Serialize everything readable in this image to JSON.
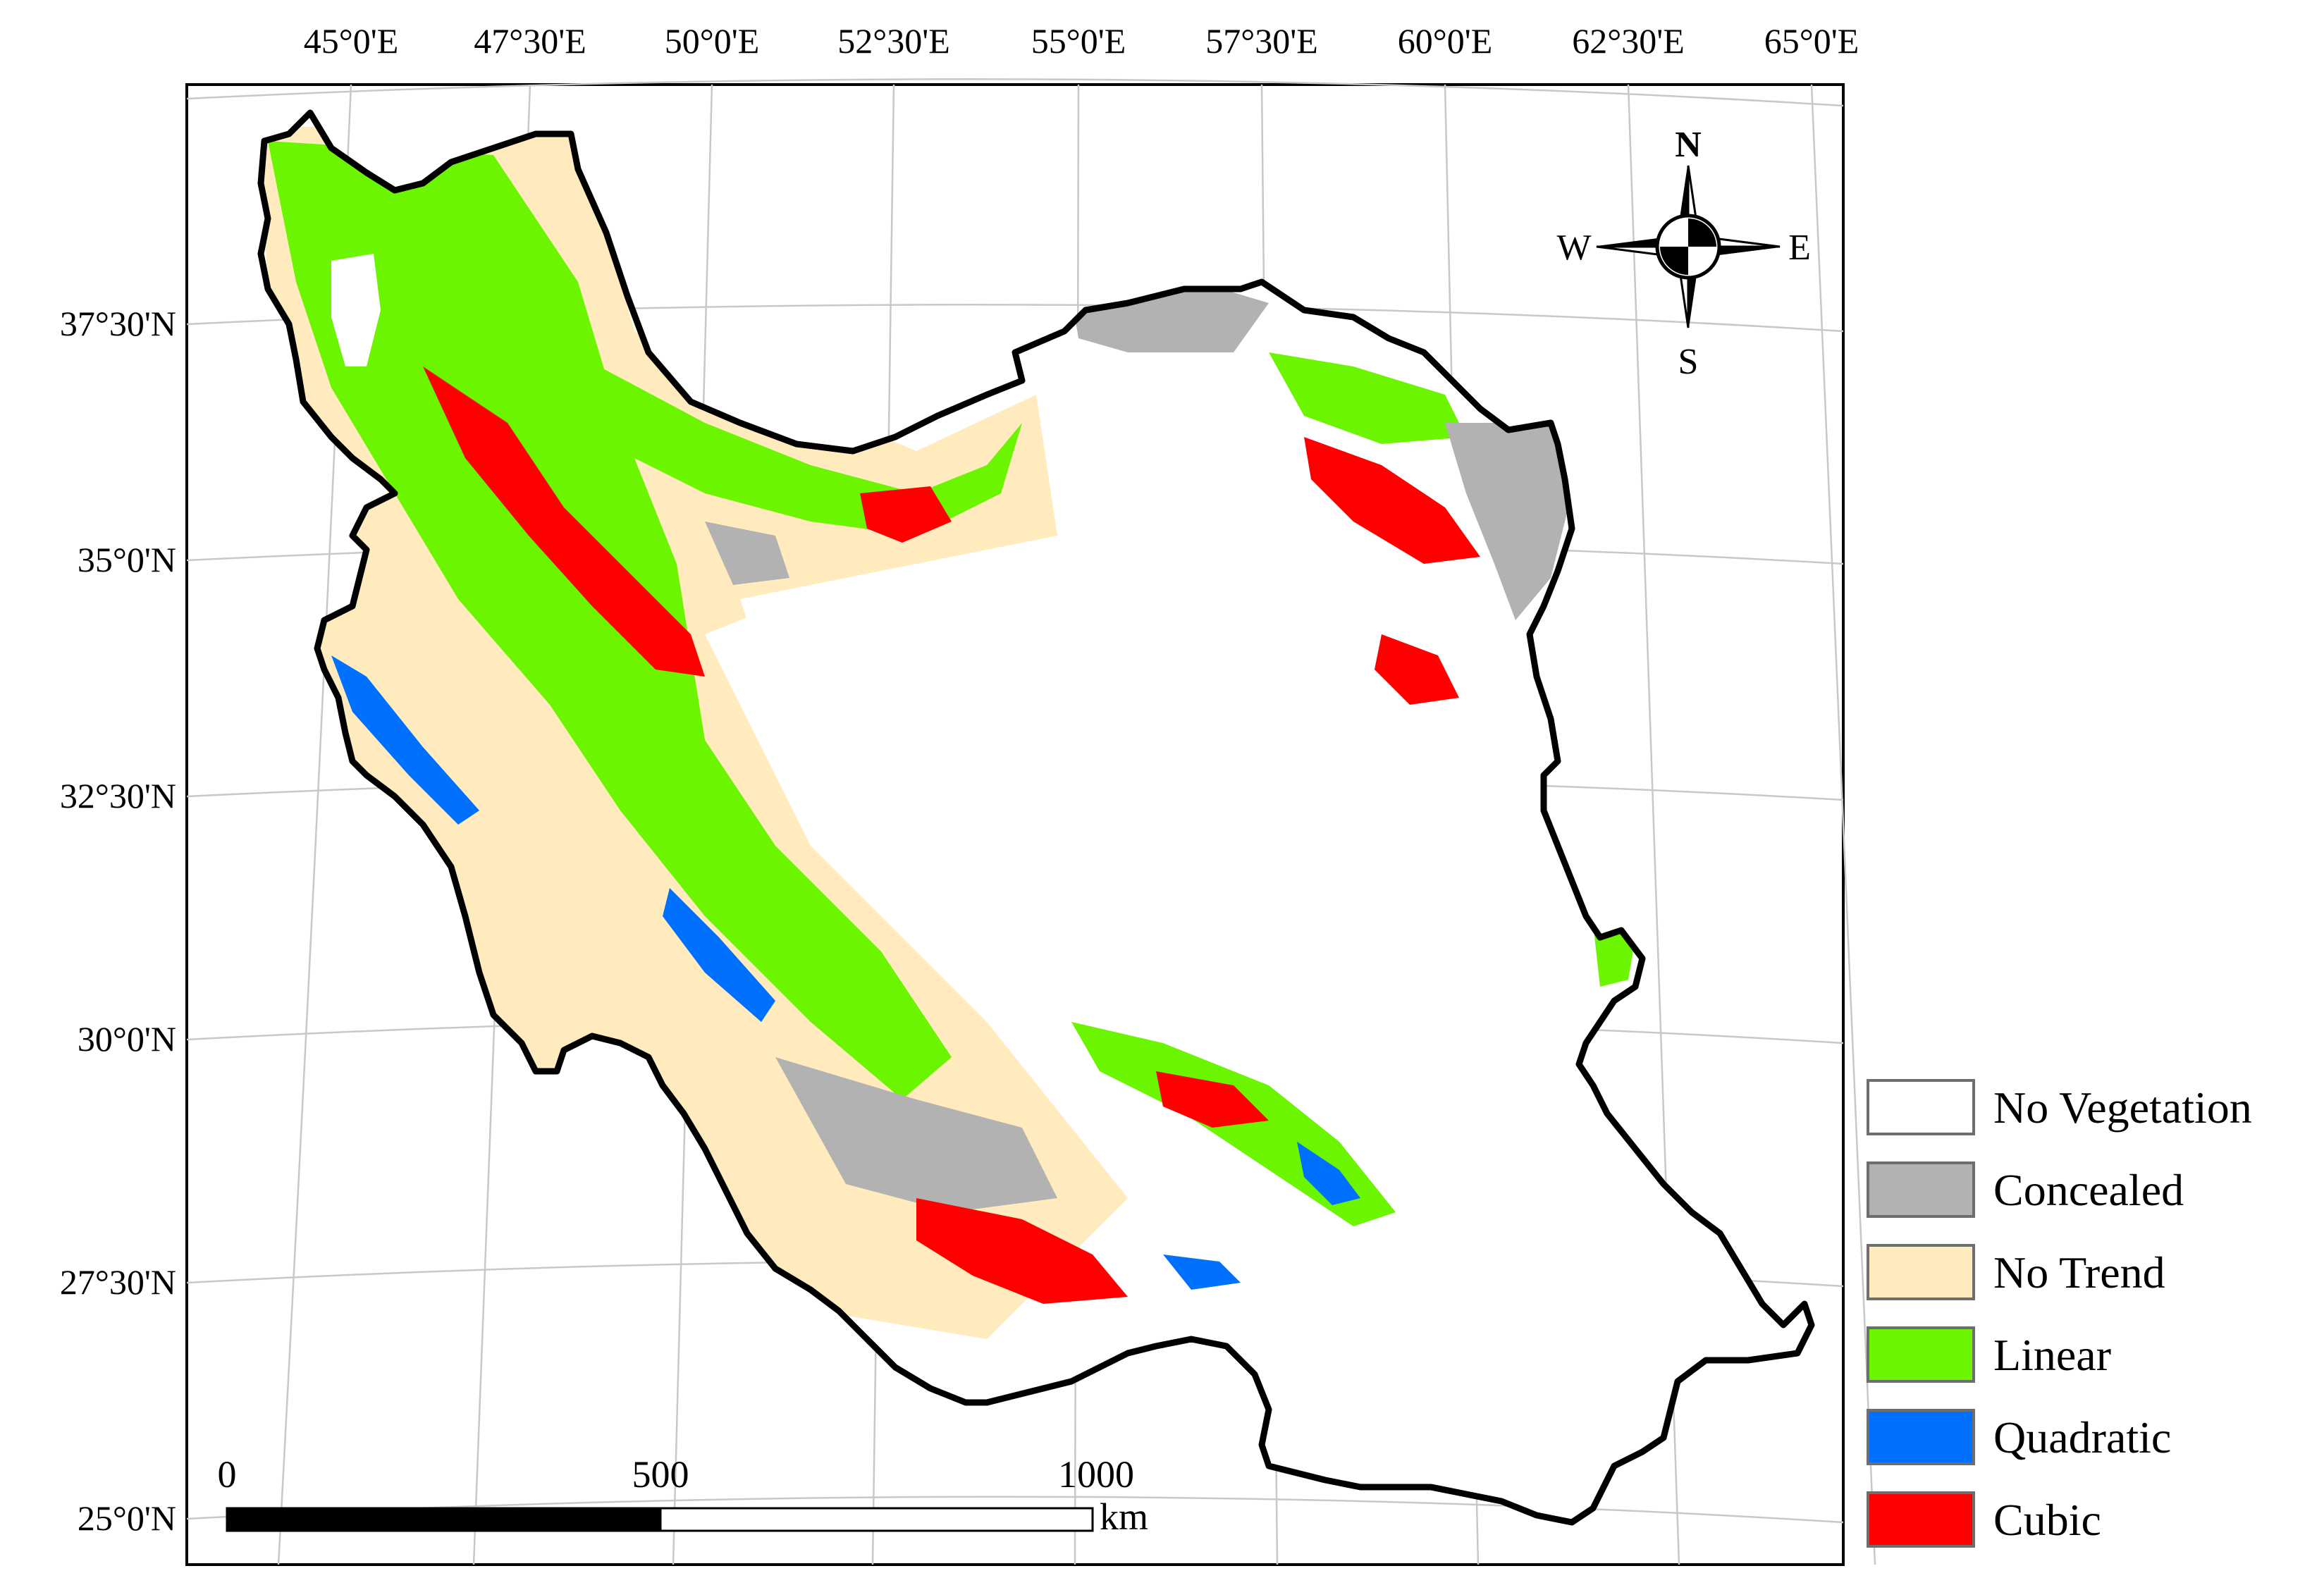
{
  "map": {
    "longitude_labels": [
      "45°0'E",
      "47°30'E",
      "50°0'E",
      "52°30'E",
      "55°0'E",
      "57°30'E",
      "60°0'E",
      "62°30'E",
      "65°0'E"
    ],
    "latitude_labels": [
      "37°30'N",
      "35°0'N",
      "32°30'N",
      "30°0'N",
      "27°30'N",
      "25°0'N"
    ]
  },
  "compass": {
    "north": "N",
    "south": "S",
    "east": "E",
    "west": "W"
  },
  "scale_bar": {
    "ticks": [
      "0",
      "500",
      "1000"
    ],
    "unit": "km"
  },
  "legend": {
    "items": [
      {
        "label": "No Vegetation",
        "color": "#ffffff"
      },
      {
        "label": "Concealed",
        "color": "#b2b2b2"
      },
      {
        "label": "No Trend",
        "color": "#ffebbe"
      },
      {
        "label": "Linear",
        "color": "#6cf500"
      },
      {
        "label": "Quadratic",
        "color": "#0070ff"
      },
      {
        "label": "Cubic",
        "color": "#ff0000"
      }
    ]
  }
}
